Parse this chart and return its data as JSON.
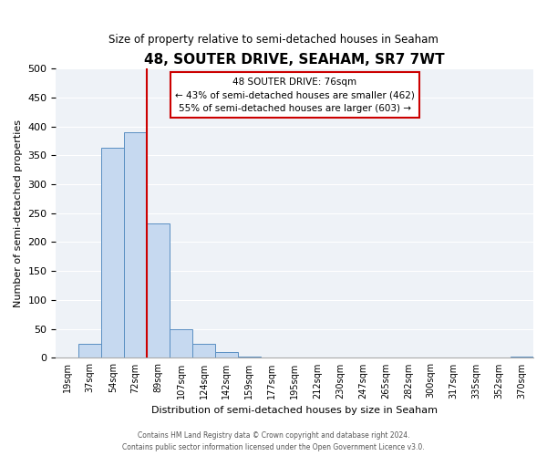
{
  "title": "48, SOUTER DRIVE, SEAHAM, SR7 7WT",
  "subtitle": "Size of property relative to semi-detached houses in Seaham",
  "xlabel": "Distribution of semi-detached houses by size in Seaham",
  "ylabel": "Number of semi-detached properties",
  "bar_labels": [
    "19sqm",
    "37sqm",
    "54sqm",
    "72sqm",
    "89sqm",
    "107sqm",
    "124sqm",
    "142sqm",
    "159sqm",
    "177sqm",
    "195sqm",
    "212sqm",
    "230sqm",
    "247sqm",
    "265sqm",
    "282sqm",
    "300sqm",
    "317sqm",
    "335sqm",
    "352sqm",
    "370sqm"
  ],
  "bar_values": [
    0,
    25,
    363,
    390,
    233,
    50,
    25,
    10,
    2,
    0,
    0,
    0,
    0,
    0,
    0,
    0,
    0,
    0,
    0,
    0,
    3
  ],
  "bar_color": "#c6d9f0",
  "bar_edge_color": "#5a8fc2",
  "ylim": [
    0,
    500
  ],
  "yticks": [
    0,
    50,
    100,
    150,
    200,
    250,
    300,
    350,
    400,
    450,
    500
  ],
  "property_line_x": 3.5,
  "property_line_color": "#cc0000",
  "annotation_title": "48 SOUTER DRIVE: 76sqm",
  "annotation_line1": "← 43% of semi-detached houses are smaller (462)",
  "annotation_line2": "55% of semi-detached houses are larger (603) →",
  "annotation_box_color": "#ffffff",
  "annotation_box_edge": "#cc0000",
  "footer_line1": "Contains HM Land Registry data © Crown copyright and database right 2024.",
  "footer_line2": "Contains public sector information licensed under the Open Government Licence v3.0.",
  "background_color": "#ffffff",
  "plot_bg_color": "#eef2f7"
}
